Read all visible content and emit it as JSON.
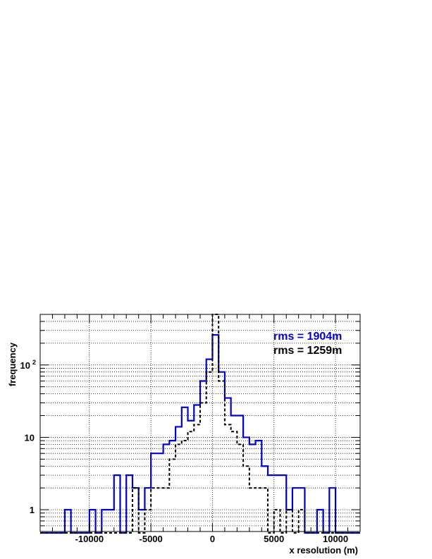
{
  "chart_data": {
    "type": "histogram",
    "xlabel": "x resolution (m)",
    "ylabel": "frequency",
    "xlim": [
      -14000,
      12000
    ],
    "ylim": [
      0.5,
      500
    ],
    "y_scale": "log",
    "grid": true,
    "bin_width": 500,
    "x_ticks": [
      {
        "value": -10000,
        "label": "-10000"
      },
      {
        "value": -5000,
        "label": "-5000"
      },
      {
        "value": 0,
        "label": "0"
      },
      {
        "value": 5000,
        "label": "5000"
      },
      {
        "value": 10000,
        "label": "10000"
      }
    ],
    "y_ticks": [
      {
        "value": 1,
        "label": "1"
      },
      {
        "value": 10,
        "label": "10"
      },
      {
        "value": 100,
        "label": "10",
        "exponent": "2"
      }
    ],
    "series": [
      {
        "color": "#0000cc",
        "style": "solid",
        "annotation": "rms = 1904m",
        "bins": [
          {
            "x": -12000,
            "y": 1
          },
          {
            "x": -10000,
            "y": 1
          },
          {
            "x": -9000,
            "y": 1
          },
          {
            "x": -8500,
            "y": 1
          },
          {
            "x": -8000,
            "y": 3
          },
          {
            "x": -7000,
            "y": 3
          },
          {
            "x": -6500,
            "y": 2
          },
          {
            "x": -6000,
            "y": 1
          },
          {
            "x": -5500,
            "y": 2
          },
          {
            "x": -5000,
            "y": 6
          },
          {
            "x": -4500,
            "y": 6
          },
          {
            "x": -4000,
            "y": 8
          },
          {
            "x": -3500,
            "y": 9
          },
          {
            "x": -3000,
            "y": 14
          },
          {
            "x": -2500,
            "y": 26
          },
          {
            "x": -2000,
            "y": 17
          },
          {
            "x": -1500,
            "y": 28
          },
          {
            "x": -1000,
            "y": 60
          },
          {
            "x": -500,
            "y": 120
          },
          {
            "x": 0,
            "y": 260
          },
          {
            "x": 500,
            "y": 80
          },
          {
            "x": 1000,
            "y": 35
          },
          {
            "x": 1500,
            "y": 20
          },
          {
            "x": 2000,
            "y": 20
          },
          {
            "x": 2500,
            "y": 10
          },
          {
            "x": 3000,
            "y": 8
          },
          {
            "x": 3500,
            "y": 9
          },
          {
            "x": 4000,
            "y": 4
          },
          {
            "x": 4500,
            "y": 3
          },
          {
            "x": 5000,
            "y": 3
          },
          {
            "x": 5500,
            "y": 3
          },
          {
            "x": 6000,
            "y": 1
          },
          {
            "x": 6500,
            "y": 2
          },
          {
            "x": 7000,
            "y": 2
          },
          {
            "x": 8500,
            "y": 1
          },
          {
            "x": 9500,
            "y": 2
          }
        ]
      },
      {
        "color": "#000000",
        "style": "dashed",
        "annotation": "rms = 1259m",
        "bins": [
          {
            "x": -6500,
            "y": 2
          },
          {
            "x": -5500,
            "y": 1
          },
          {
            "x": -5000,
            "y": 2
          },
          {
            "x": -4500,
            "y": 2
          },
          {
            "x": -4000,
            "y": 2
          },
          {
            "x": -3500,
            "y": 5
          },
          {
            "x": -3000,
            "y": 8
          },
          {
            "x": -2500,
            "y": 9
          },
          {
            "x": -2000,
            "y": 12
          },
          {
            "x": -1500,
            "y": 15
          },
          {
            "x": -1000,
            "y": 30
          },
          {
            "x": -500,
            "y": 80
          },
          {
            "x": 0,
            "y": 500
          },
          {
            "x": 500,
            "y": 60
          },
          {
            "x": 1000,
            "y": 15
          },
          {
            "x": 1500,
            "y": 12
          },
          {
            "x": 2000,
            "y": 8
          },
          {
            "x": 2500,
            "y": 4
          },
          {
            "x": 3000,
            "y": 2
          },
          {
            "x": 3500,
            "y": 2
          },
          {
            "x": 4000,
            "y": 2
          },
          {
            "x": 5000,
            "y": 1
          },
          {
            "x": 6000,
            "y": 1
          },
          {
            "x": 7000,
            "y": 1
          }
        ]
      }
    ]
  }
}
